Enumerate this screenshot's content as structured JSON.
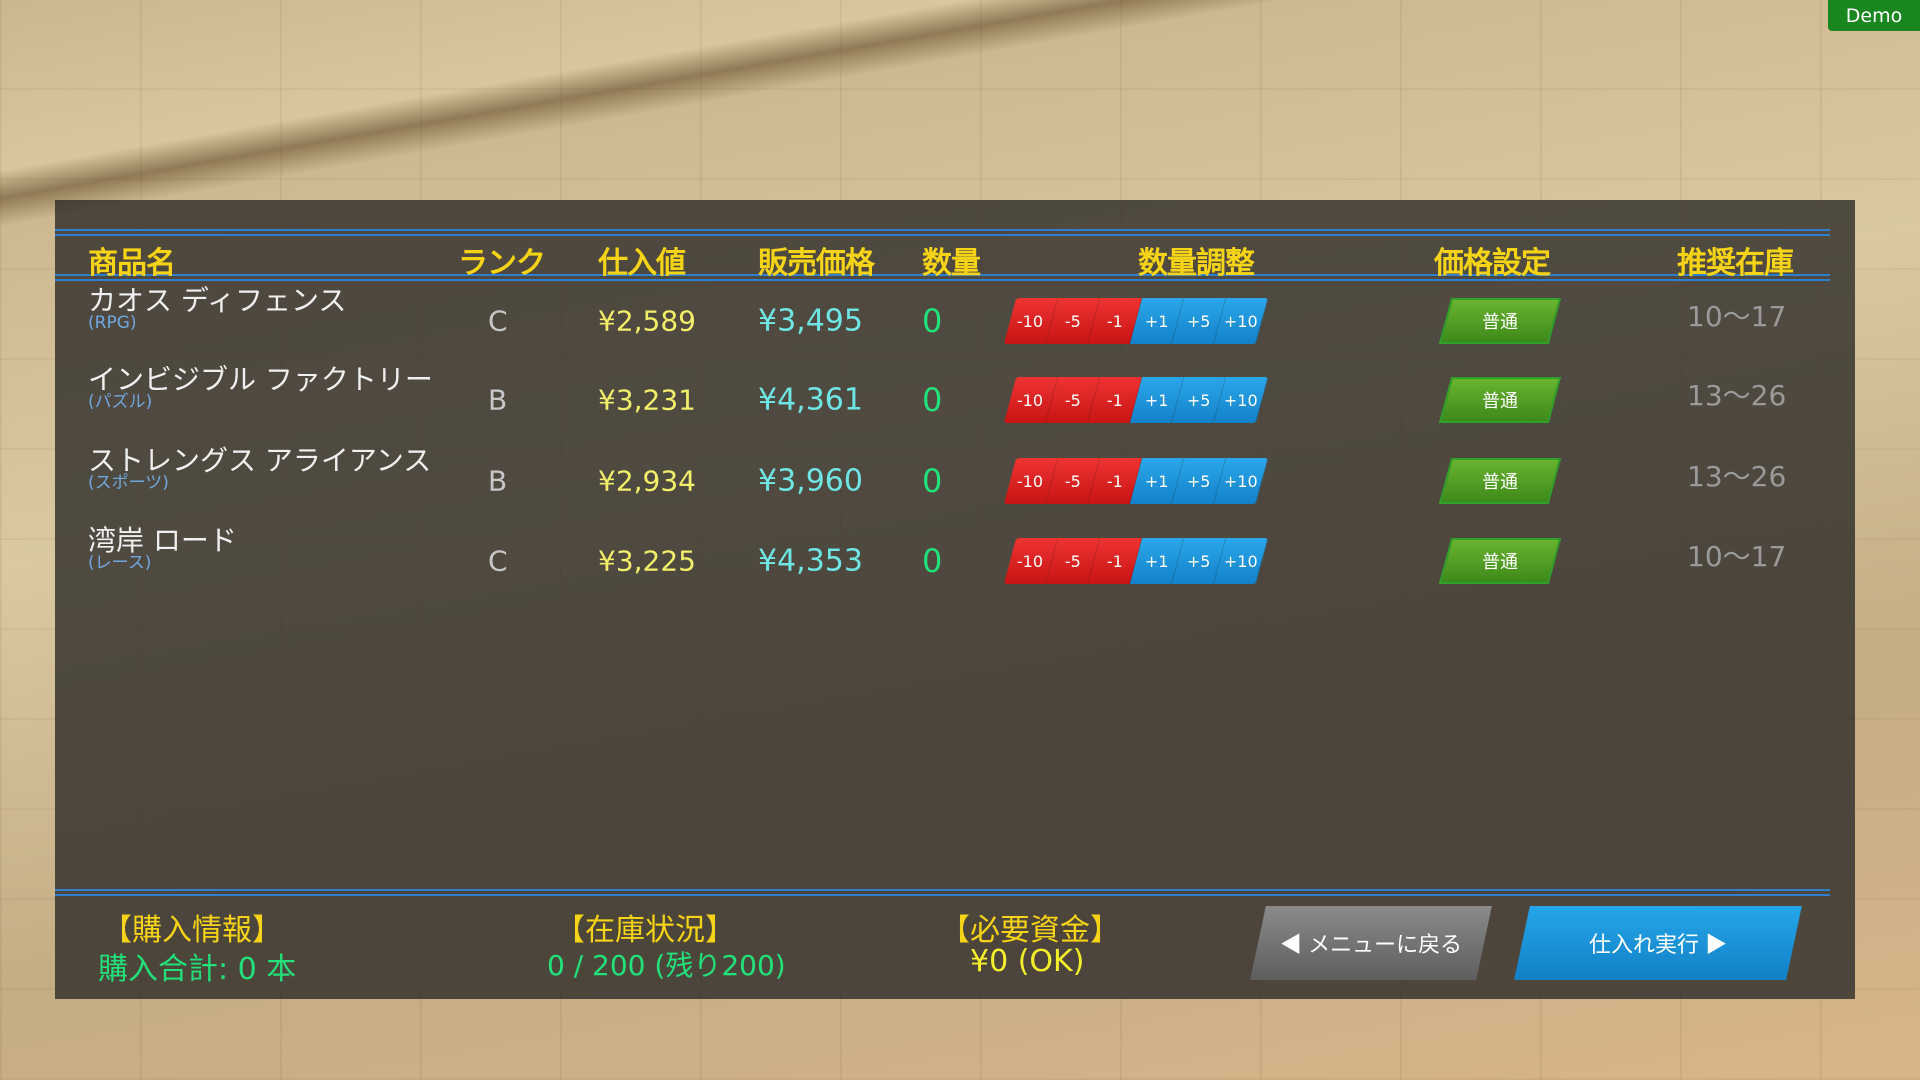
{
  "badge": "Demo",
  "headers": {
    "name": "商品名",
    "rank": "ランク",
    "cost": "仕入値",
    "price": "販売価格",
    "qty": "数量",
    "adjust": "数量調整",
    "price_setting": "価格設定",
    "recommended": "推奨在庫"
  },
  "adjust_buttons": [
    "-10",
    "-5",
    "-1",
    "+1",
    "+5",
    "+10"
  ],
  "items": [
    {
      "name": "カオス ディフェンス",
      "genre": "(RPG)",
      "rank": "C",
      "cost": "¥2,589",
      "price": "¥3,495",
      "qty": "0",
      "price_mode": "普通",
      "recommended": "10～17"
    },
    {
      "name": "インビジブル ファクトリー",
      "genre": "(パズル)",
      "rank": "B",
      "cost": "¥3,231",
      "price": "¥4,361",
      "qty": "0",
      "price_mode": "普通",
      "recommended": "13～26"
    },
    {
      "name": "ストレングス アライアンス",
      "genre": "(スポーツ)",
      "rank": "B",
      "cost": "¥2,934",
      "price": "¥3,960",
      "qty": "0",
      "price_mode": "普通",
      "recommended": "13～26"
    },
    {
      "name": "湾岸 ロード",
      "genre": "(レース)",
      "rank": "C",
      "cost": "¥3,225",
      "price": "¥4,353",
      "qty": "0",
      "price_mode": "普通",
      "recommended": "10～17"
    }
  ],
  "footer": {
    "purchase_label": "【購入情報】",
    "purchase_value": "購入合計: 0 本",
    "stock_label": "【在庫状況】",
    "stock_value": "0 / 200 (残り200)",
    "funds_label": "【必要資金】",
    "funds_value": "¥0 (OK)",
    "back_button": "◀ メニューに戻る",
    "execute_button": "仕入れ実行 ▶"
  },
  "colors": {
    "header": "#f5d317",
    "line": "#2f7fd0",
    "minus": "#d41c1c",
    "plus": "#1b93dc",
    "price_button": "#4f9e22",
    "execute": "#1b93dc"
  }
}
